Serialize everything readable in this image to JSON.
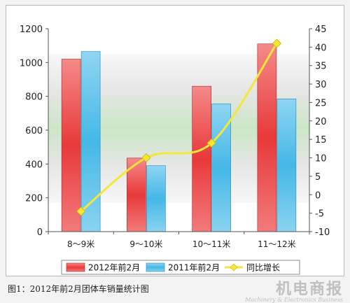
{
  "chart_data": {
    "type": "bar",
    "categories": [
      "8～9米",
      "9～10米",
      "10～11米",
      "11～12米"
    ],
    "series": [
      {
        "name": "2012年前2月",
        "kind": "bar",
        "axis": "left",
        "color": "#e8393a",
        "values": [
          1020,
          435,
          860,
          1110
        ]
      },
      {
        "name": "2011年前2月",
        "kind": "bar",
        "axis": "left",
        "color": "#45b8e6",
        "values": [
          1065,
          390,
          755,
          785
        ]
      },
      {
        "name": "同比增长",
        "kind": "line",
        "axis": "right",
        "color": "#f5e63a",
        "values": [
          -4.5,
          10,
          14,
          41
        ]
      }
    ],
    "y_left": {
      "min": 0,
      "max": 1200,
      "ticks": [
        "0",
        "200",
        "400",
        "600",
        "800",
        "1000",
        "1200"
      ]
    },
    "y_right": {
      "min": -10,
      "max": 45,
      "ticks": [
        "-10",
        "-5",
        "0",
        "5",
        "10",
        "15",
        "20",
        "25",
        "30",
        "35",
        "40",
        "45"
      ]
    },
    "legend_position": "bottom",
    "grid": false
  },
  "caption": "图1：2012年前2月团体车销量统计图",
  "watermark": {
    "cn": "机电商报",
    "en": "Machinery & Electronics Business"
  }
}
